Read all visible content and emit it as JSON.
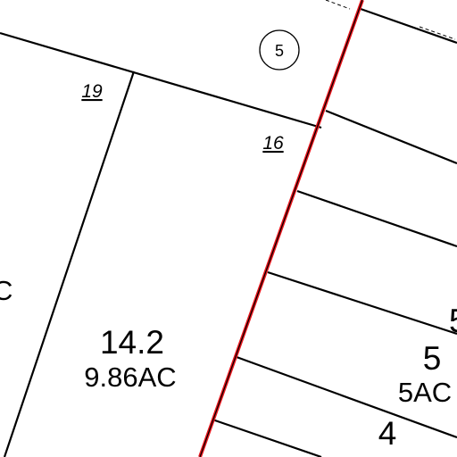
{
  "map": {
    "circled_label": "5",
    "frontages": {
      "left": "19",
      "right": "16"
    },
    "parcels": [
      {
        "id": "14.2",
        "area": "9.86AC"
      },
      {
        "id": "5",
        "area": "5AC"
      },
      {
        "id": "4",
        "area": ""
      }
    ],
    "edge_text": {
      "left_fragment": "C",
      "right_fragment": "5"
    },
    "colors": {
      "boundary": "#e8141b",
      "lines": "#000000"
    }
  }
}
